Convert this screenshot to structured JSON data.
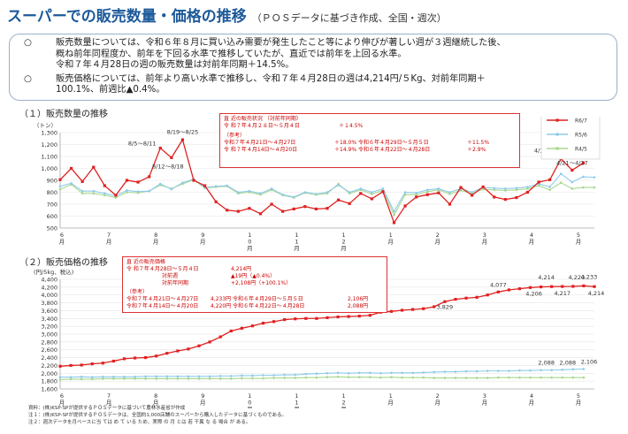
{
  "header": {
    "title": "スーパーでの販売数量・価格の推移",
    "subtitle": "（ＰＯＳデータに基づき作成、全国・週次）"
  },
  "summary": {
    "bullets": [
      {
        "mark": "○",
        "lines": [
          "販売数量については、令和６年８月に買い込み需要が発生したこと等により伸びが著しい週が３週継続した後、",
          "概ね前年同程度か、前年を下回る水準で推移していたが、直近では前年を上回る水準。",
          "令和７年４月28日の週の販売数量は対前年同期＋14.5%。"
        ]
      },
      {
        "mark": "○",
        "lines": [
          "販売価格については、前年より高い水準で推移し、令和７年４月28日の週は4,214円/５Kg、対前年同期＋",
          "100.1%、前週比▲0.4%。"
        ]
      }
    ]
  },
  "colors": {
    "r6_7": "#e02020",
    "r5_6": "#8ecbe8",
    "r4_5": "#a8d890"
  },
  "chart_data": [
    {
      "type": "line",
      "section_label": "（１）販売数量の推移",
      "ylabel": "（トン）",
      "ylim": [
        500,
        1300
      ],
      "yticks": [
        500,
        600,
        700,
        800,
        900,
        1000,
        1100,
        1200,
        1300
      ],
      "month_labels": [
        "6\n月",
        "7\n月",
        "8\n月",
        "9\n月",
        "1\n0\n月",
        "1\n1\n月",
        "1\n2\n月",
        "1\n月",
        "2\n月",
        "3\n月",
        "4\n月",
        "5\n月"
      ],
      "legend": [
        "R6/7",
        "R5/6",
        "R4/5"
      ],
      "series": [
        {
          "name": "R6/7",
          "values": [
            905,
            1000,
            890,
            1010,
            855,
            775,
            900,
            885,
            930,
            1170,
            1090,
            1240,
            900,
            855,
            720,
            650,
            640,
            665,
            620,
            700,
            640,
            660,
            680,
            660,
            665,
            735,
            705,
            790,
            745,
            805,
            545,
            685,
            760,
            780,
            795,
            700,
            840,
            775,
            845,
            760,
            740,
            755,
            800,
            885,
            905,
            1080,
            985,
            1045
          ]
        },
        {
          "name": "R5/6",
          "values": [
            850,
            875,
            810,
            810,
            790,
            770,
            815,
            805,
            810,
            870,
            825,
            880,
            910,
            840,
            850,
            855,
            800,
            810,
            790,
            830,
            780,
            760,
            800,
            785,
            800,
            860,
            800,
            830,
            800,
            830,
            640,
            800,
            795,
            820,
            830,
            800,
            830,
            800,
            840,
            835,
            830,
            835,
            845,
            870,
            845,
            955,
            885,
            930,
            925
          ]
        },
        {
          "name": "R4/5",
          "values": [
            825,
            865,
            790,
            790,
            775,
            755,
            800,
            795,
            810,
            860,
            830,
            870,
            905,
            835,
            845,
            850,
            790,
            800,
            780,
            820,
            775,
            755,
            795,
            780,
            790,
            870,
            790,
            820,
            785,
            815,
            610,
            780,
            780,
            805,
            820,
            785,
            815,
            790,
            825,
            820,
            815,
            820,
            830,
            855,
            820,
            880,
            830,
            840,
            840
          ]
        }
      ],
      "annotations": [
        "8/5～8/11",
        "8/12～8/18",
        "8/19～8/25",
        "4/14～4/20",
        "4/21～4/27",
        "4/28～5/4"
      ],
      "info_box": {
        "title": "直 近の販売状況 （対前年同期）",
        "latest_label": "令 和７年４月２８日～５月４日",
        "latest_value": "＋１4.5%",
        "ref_title": "（参考）",
        "ref_rows": [
          [
            "令和７年４月21日～４月27日",
            "＋18.0% 令和６年４月29日～５月５日",
            "＋11.5%"
          ],
          [
            "令 和７年４月14日～４月20日",
            "＋14.9% 令和６年４月22日～４月28日",
            "＋2.9%"
          ]
        ]
      }
    },
    {
      "type": "line",
      "section_label": "（２）販売価格の推移",
      "ylabel": "(円/5kg、税込)",
      "ylim": [
        1600,
        4400
      ],
      "yticks": [
        1600,
        1800,
        2000,
        2200,
        2400,
        2600,
        2800,
        3000,
        3200,
        3400,
        3600,
        3800,
        4000,
        4200,
        4400
      ],
      "month_labels": [
        "6\n月",
        "7\n月",
        "8\n月",
        "9\n月",
        "1\n0\n月",
        "1\n1\n月",
        "1\n2\n月",
        "1\n月",
        "2\n月",
        "3\n月",
        "4\n月",
        "5\n月"
      ],
      "series": [
        {
          "name": "R6/7",
          "values": [
            2180,
            2200,
            2210,
            2240,
            2260,
            2310,
            2370,
            2390,
            2400,
            2440,
            2510,
            2570,
            2620,
            2700,
            2800,
            2930,
            3080,
            3150,
            3210,
            3280,
            3320,
            3370,
            3390,
            3400,
            3400,
            3420,
            3440,
            3450,
            3460,
            3480,
            3560,
            3580,
            3610,
            3630,
            3650,
            3700,
            3829,
            3890,
            3920,
            3940,
            4000,
            4077,
            4130,
            4160,
            4190,
            4206,
            4214,
            4217,
            4220,
            4233,
            4214
          ]
        },
        {
          "name": "R5/6",
          "values": [
            1900,
            1900,
            1910,
            1900,
            1910,
            1910,
            1910,
            1910,
            1920,
            1920,
            1920,
            1920,
            1920,
            1920,
            1920,
            1930,
            1930,
            1940,
            1940,
            1950,
            1950,
            1960,
            1960,
            1980,
            1990,
            2000,
            2010,
            2000,
            2010,
            2010,
            2000,
            2010,
            2010,
            2010,
            2020,
            2030,
            2040,
            2040,
            2050,
            2050,
            2060,
            2060,
            2060,
            2070,
            2070,
            2080,
            2080,
            2090,
            2100,
            2108
          ]
        },
        {
          "name": "R4/5",
          "values": [
            1840,
            1850,
            1850,
            1850,
            1860,
            1860,
            1860,
            1860,
            1860,
            1860,
            1860,
            1860,
            1860,
            1860,
            1860,
            1860,
            1860,
            1870,
            1870,
            1870,
            1880,
            1880,
            1880,
            1890,
            1890,
            1900,
            1910,
            1900,
            1900,
            1900,
            1890,
            1900,
            1890,
            1890,
            1890,
            1880,
            1880,
            1880,
            1880,
            1880,
            1880,
            1890,
            1890,
            1890,
            1890,
            1890,
            1890,
            1890,
            1890,
            1890
          ]
        }
      ],
      "data_labels": [
        "3,829",
        "4,077",
        "4,214",
        "4,220",
        "4,233",
        "4,206",
        "4,217",
        "4,214",
        "2,088",
        "2,088",
        "2,106"
      ],
      "info_box": {
        "title": "直 近の販売価格",
        "latest_label": "令 和７年４月28日～５月４日",
        "latest_value": "4,214円",
        "diff1_label": "対前週",
        "diff1_value": "▲19円（▲0.4%）",
        "diff2_label": "対前年同期",
        "diff2_value": "+2,108円（+100.1%）",
        "ref_title": "（参考）",
        "ref_rows": [
          [
            "令和７年４月21日～４月27日",
            "4,233円 令和６年４月29日～５月５日",
            "2,106円"
          ],
          [
            "令和７年４月14日～４月20日",
            "4,220円 令和６年４月22日～４月28日",
            "2,088円"
          ]
        ]
      }
    }
  ],
  "notes": [
    "資料：(株)KSP-SPが提供するＰＯＳデータに基づいて農林水産省が作成",
    "注１：(株)KSP-SPが提供するＰＯＳデータは、全国約1,000店舗のスーパーから購入したデータに基づくものである。",
    "注２：週次データを月ベースに当 ては め て いる ため、実際 の 月 とは 若 干異 な る 場合 が ある。"
  ]
}
